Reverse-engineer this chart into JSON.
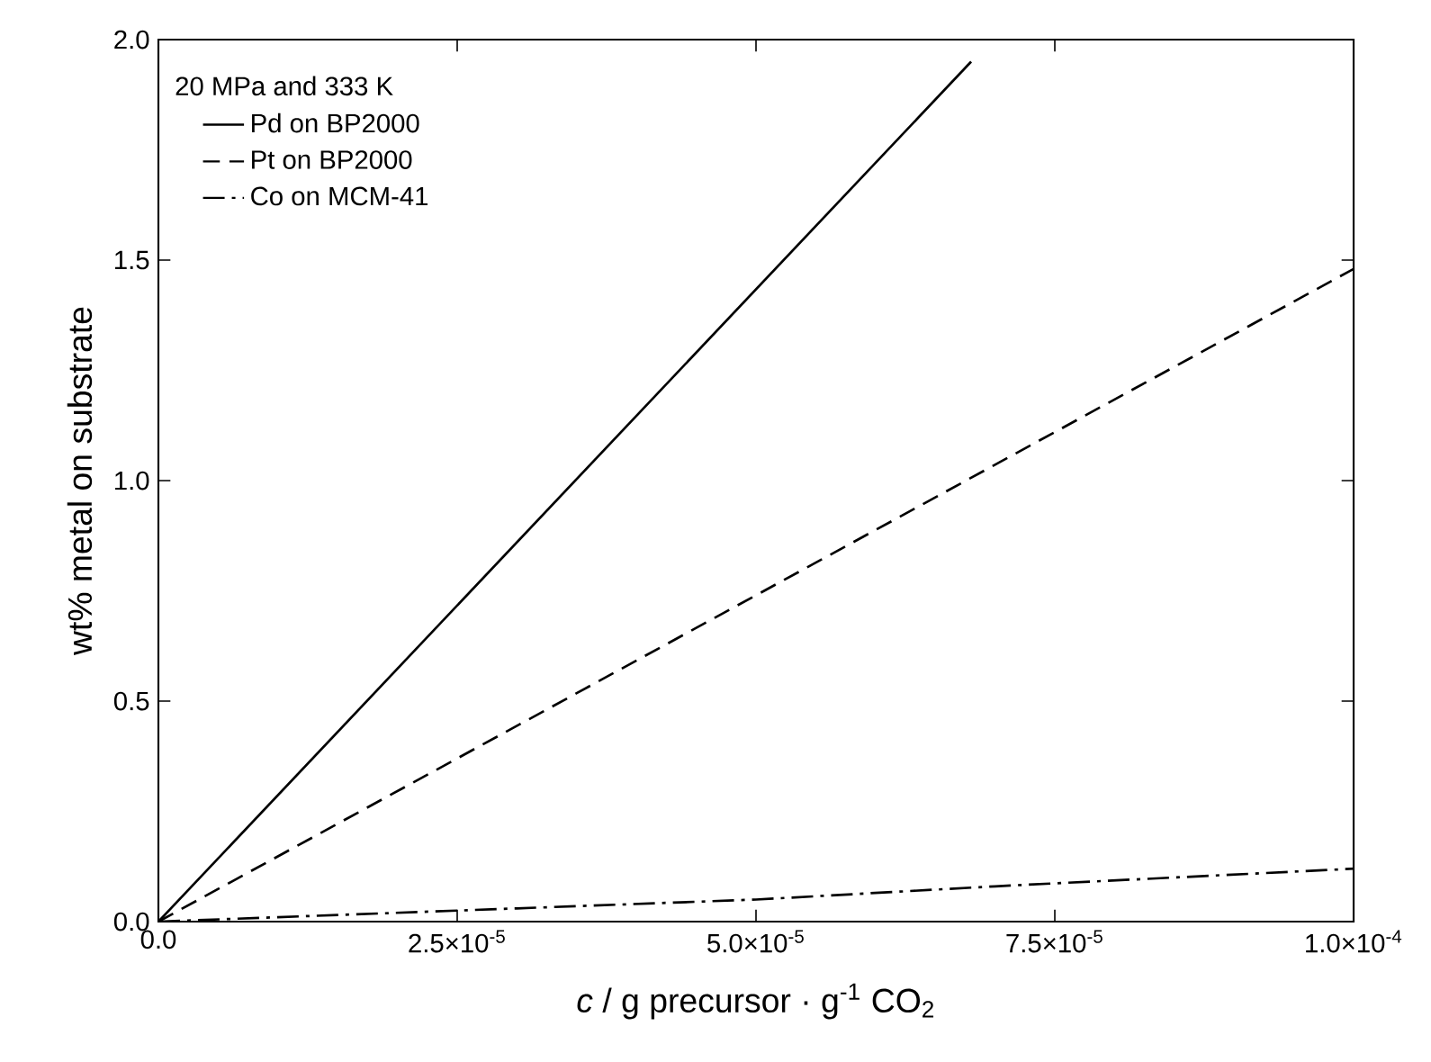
{
  "chart_data": {
    "type": "line",
    "xlabel": "*c* / g precursor · g$^{-1}$ CO$_{2}$",
    "ylabel": "wt% metal on substrate",
    "legend_title": "20 MPa and 333 K",
    "legend": "top left",
    "xlim": [
      0,
      0.0001
    ],
    "ylim": [
      0,
      2.0
    ],
    "xticks": [
      {
        "value": 0,
        "label": "0.0"
      },
      {
        "value": 2.5e-05,
        "label": "2.5×10$^{-5}$"
      },
      {
        "value": 5e-05,
        "label": "5.0×10$^{-5}$"
      },
      {
        "value": 7.5e-05,
        "label": "7.5×10$^{-5}$"
      },
      {
        "value": 0.0001,
        "label": "1.0×10$^{-4}$"
      }
    ],
    "yticks": [
      {
        "value": 0,
        "label": "0.0"
      },
      {
        "value": 0.5,
        "label": "0.5"
      },
      {
        "value": 1.0,
        "label": "1.0"
      },
      {
        "value": 1.5,
        "label": "1.5"
      },
      {
        "value": 2.0,
        "label": "2.0"
      }
    ],
    "series": [
      {
        "name": "Pd on BP2000",
        "color": "#000000",
        "line_style": "solid",
        "x": [
          0,
          6.8e-05
        ],
        "values": [
          0,
          1.95
        ]
      },
      {
        "name": "Pt on BP2000",
        "color": "#000000",
        "line_style": "dashed",
        "x": [
          0,
          0.0001
        ],
        "values": [
          0,
          1.48
        ]
      },
      {
        "name": "Co on MCM-41",
        "color": "#000000",
        "line_style": "dashdot",
        "x": [
          0,
          1e-05,
          3e-05,
          5e-05,
          7e-05,
          0.0001
        ],
        "values": [
          0,
          0.01,
          0.03,
          0.05,
          0.08,
          0.12
        ]
      }
    ]
  }
}
